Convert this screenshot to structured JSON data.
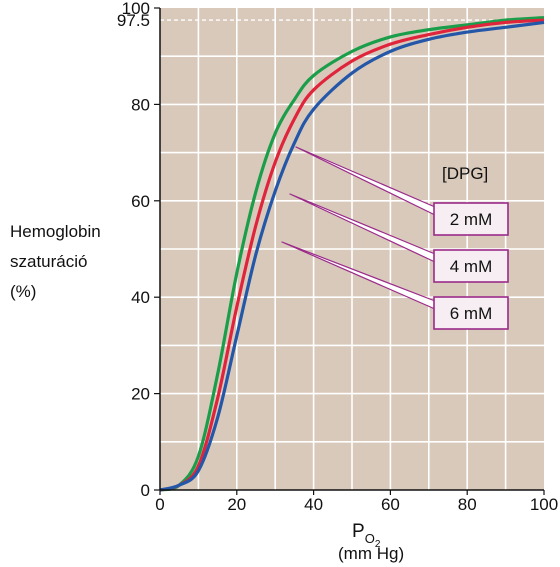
{
  "chart_data": {
    "type": "line",
    "ylabel_lines": [
      "Hemoglobin",
      "szaturáció",
      "(%)"
    ],
    "xlabel_main": "P",
    "xlabel_sub": "O",
    "xlabel_subsub": "2",
    "xlabel_unit": "(mm Hg)",
    "xlim": [
      0,
      100
    ],
    "ylim": [
      0,
      100
    ],
    "x_ticks": [
      0,
      20,
      40,
      60,
      80,
      100
    ],
    "y_ticks": [
      0,
      20,
      40,
      60,
      80,
      100
    ],
    "reference_line": {
      "y": 97.5,
      "label": "97.5",
      "style": "dashed"
    },
    "grid": true,
    "legend_title": "[DPG]",
    "colors": {
      "plot_bg": "#d8c9bb",
      "grid": "#ffffff",
      "box_border": "#9b2a8a",
      "box_fill": "#f6eef2"
    },
    "series": [
      {
        "name": "2 mM",
        "color": "#1a9e4a",
        "p50": 23,
        "x": [
          0,
          5,
          10,
          15,
          20,
          25,
          30,
          35,
          40,
          50,
          60,
          70,
          80,
          90,
          100
        ],
        "values": [
          0,
          1,
          7,
          24,
          45,
          62,
          74,
          81,
          86,
          91,
          94,
          95.5,
          96.5,
          97.5,
          98
        ]
      },
      {
        "name": "4 mM",
        "color": "#e0243c",
        "p50": 25,
        "x": [
          0,
          5,
          10,
          15,
          20,
          25,
          30,
          35,
          40,
          50,
          60,
          70,
          80,
          90,
          100
        ],
        "values": [
          0,
          1,
          5,
          19,
          38,
          55,
          68,
          77,
          83,
          89,
          92.5,
          94.5,
          96,
          97,
          97.5
        ]
      },
      {
        "name": "6 mM",
        "color": "#2457a8",
        "p50": 27,
        "x": [
          0,
          5,
          10,
          15,
          20,
          25,
          30,
          35,
          40,
          50,
          60,
          70,
          80,
          90,
          100
        ],
        "values": [
          0,
          1,
          4,
          15,
          32,
          49,
          62,
          72,
          79,
          86.5,
          91,
          93.5,
          95,
          96,
          97
        ]
      }
    ]
  }
}
